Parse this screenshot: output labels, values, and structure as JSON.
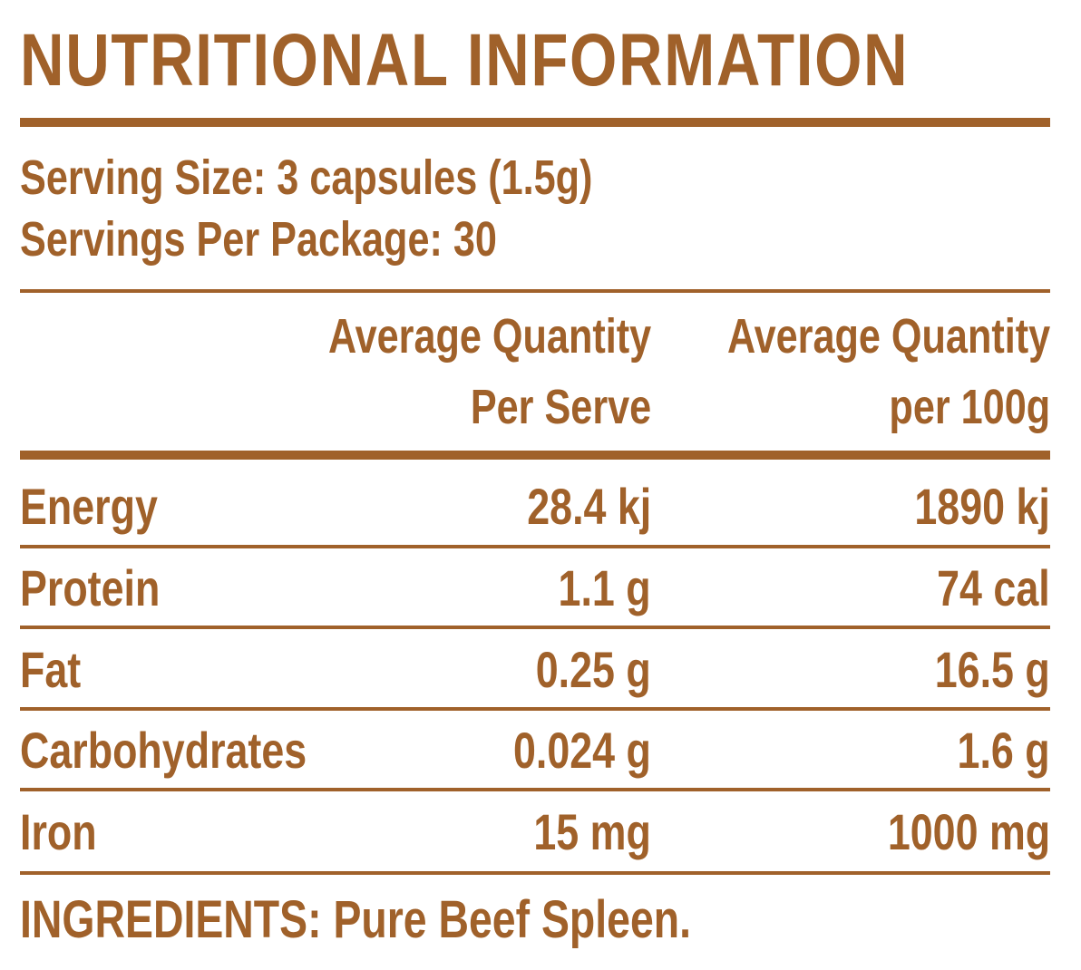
{
  "title": "NUTRITIONAL INFORMATION",
  "serving": {
    "size": "Serving Size: 3 capsules (1.5g)",
    "per_package": "Servings Per Package: 30"
  },
  "columns": {
    "per_serve_line1": "Average Quantity",
    "per_serve_line2": "Per Serve",
    "per_100g_line1": "Average Quantity",
    "per_100g_line2": "per 100g"
  },
  "rows": [
    {
      "label": "Energy",
      "per_serve": "28.4 kj",
      "per_100g": "1890 kj"
    },
    {
      "label": "Protein",
      "per_serve": "1.1 g",
      "per_100g": "74 cal"
    },
    {
      "label": "Fat",
      "per_serve": "0.25 g",
      "per_100g": "16.5 g"
    },
    {
      "label": "Carbohydrates",
      "per_serve": "0.024 g",
      "per_100g": "1.6 g"
    },
    {
      "label": "Iron",
      "per_serve": "15 mg",
      "per_100g": "1000 mg"
    }
  ],
  "ingredients": {
    "label": "INGREDIENTS:",
    "text": "Pure Beef Spleen."
  },
  "colors": {
    "accent": "#a0612a"
  }
}
